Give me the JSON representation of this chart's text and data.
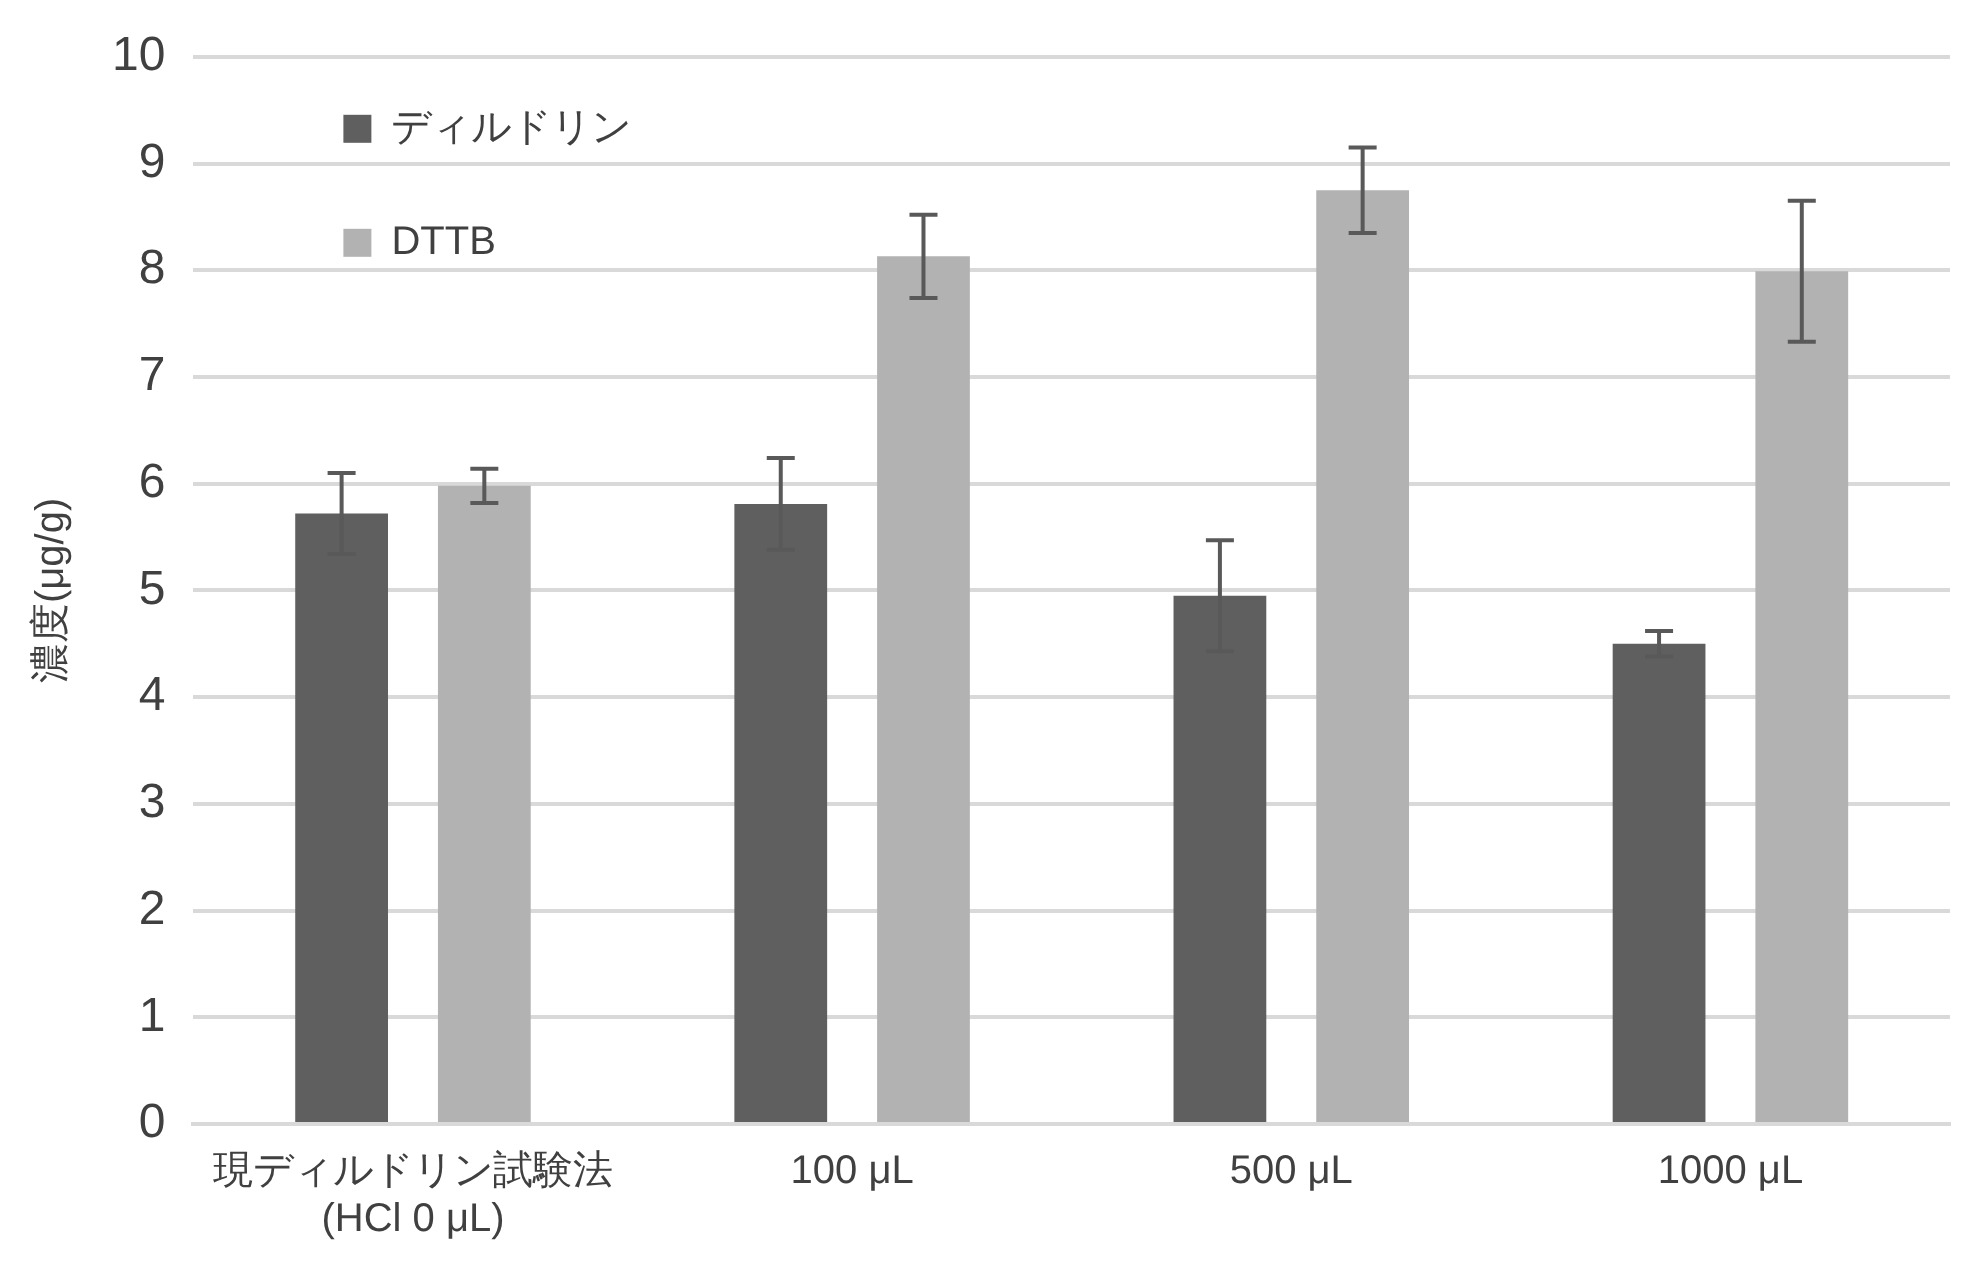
{
  "chart_data": {
    "type": "bar",
    "ylabel": "濃度(μg/g)",
    "categories": [
      "現ディルドリン試験法\n(HCl 0 μL)",
      "100 μL",
      "500 μL",
      "1000 μL"
    ],
    "series": [
      {
        "name": "ディルドリン",
        "color": "#5f5f5f",
        "values": [
          5.72,
          5.81,
          4.95,
          4.5
        ],
        "errors": [
          0.38,
          0.43,
          0.52,
          0.12
        ]
      },
      {
        "name": "DTTB",
        "color": "#b2b2b2",
        "values": [
          5.98,
          8.13,
          8.75,
          7.99
        ],
        "errors": [
          0.16,
          0.39,
          0.4,
          0.66
        ]
      }
    ],
    "ylim": [
      0,
      10
    ],
    "yticks": [
      0,
      1,
      2,
      3,
      4,
      5,
      6,
      7,
      8,
      9,
      10
    ],
    "grid": "y",
    "legend": "top left"
  }
}
